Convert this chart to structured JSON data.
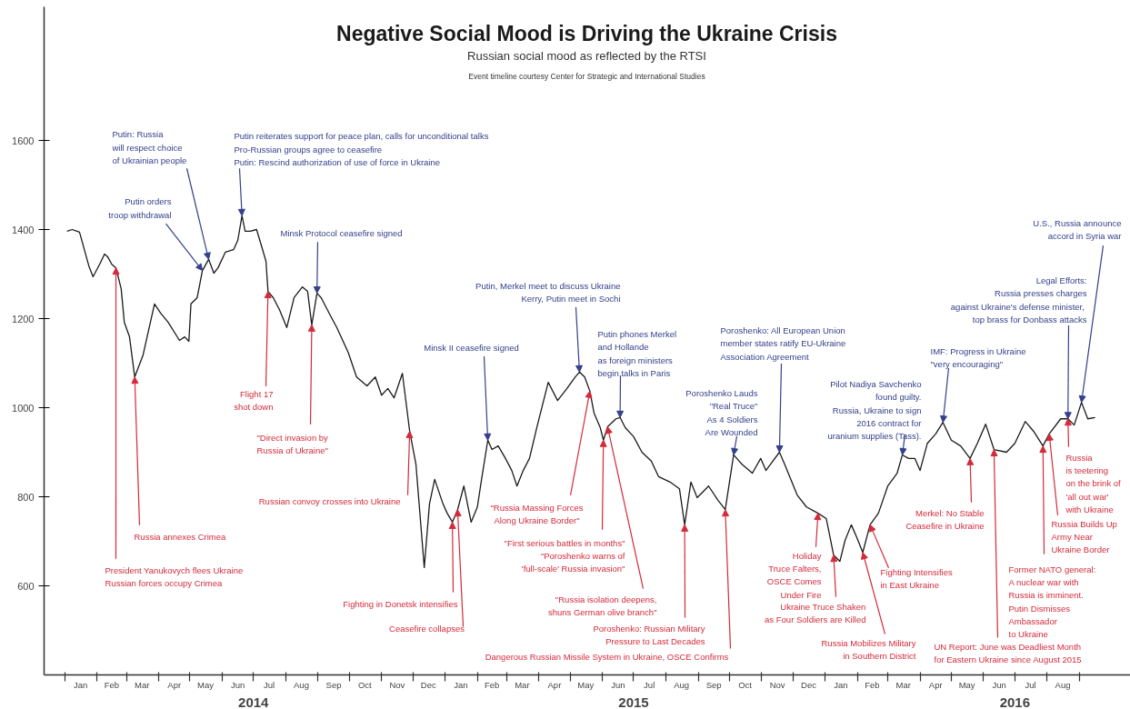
{
  "chart_data": {
    "type": "line",
    "title": "Negative Social Mood is Driving the Ukraine Crisis",
    "subtitle": "Russian social mood as reflected by the RTSI",
    "annotations": [
      "Event timeline courtesy Center for Strategic and International Studies",
      {
        "text": "Putin orders\ntroop withdrawal",
        "x": "2014-05-13",
        "y": 1308
      },
      {
        "text": "Putin: Russia\nwill respect choice\nof Ukrainian people",
        "x": "2014-05-19",
        "y": 1333
      },
      {
        "text": "Putin reiterates support for peace plan, calls for unconditional talks\nPro-Russian groups agree to ceasefire\nPutin: Rescind authorization of use of force in Ukraine",
        "x": "2014-06-20",
        "y": 1431
      },
      {
        "text": "Minsk Protocol ceasefire signed",
        "x": "2014-08-31",
        "y": 1257
      },
      {
        "text": "Putin, Merkel meet to discuss Ukraine\nKerry, Putin meet in Sochi",
        "x": "2015-05-10",
        "y": 1080
      },
      {
        "text": "Minsk II ceasefire signed",
        "x": "2015-02-11",
        "y": 927
      },
      {
        "text": "Putin phones Merkel\nand Hollande\nas foreign ministers\nbegin talks in Paris",
        "x": "2015-06-18",
        "y": 978
      },
      {
        "text": "Poroshenko Lauds\n\"Real Truce\"\nAs 4 Soldiers\nAre Wounded",
        "x": "2015-10-05",
        "y": 894
      },
      {
        "text": "Poroshenko: All European Union\nmember states ratify EU-Ukraine\nAssociation Agreement",
        "x": "2015-11-18",
        "y": 900
      },
      {
        "text": "Pilot Nadiya Savchenko\nfound guilty.\nRussia, Ukraine to sign\n2016 contract for\nuranium supplies (Tass).",
        "x": "2016-03-15",
        "y": 894
      },
      {
        "text": "IMF: Progress in Ukraine\n\"very encouraging\"",
        "x": "2016-04-23",
        "y": 967
      },
      {
        "text": "Legal Efforts:\nRussia presses charges\nagainst Ukraine's  defense minister,\ntop brass for Donbass attacks",
        "x": "2016-08-21",
        "y": 975
      },
      {
        "text": "U.S., Russia announce\naccord in Syria war",
        "x": "2016-09-03",
        "y": 1012
      },
      {
        "text": "President Yanukovych flees Ukraine\nRussian forces occupy Crimea",
        "x": "2014-02-19",
        "y": 1314
      },
      {
        "text": "Russia annexes Crimea",
        "x": "2014-03-09",
        "y": 1069
      },
      {
        "text": "Flight 17\nshot down",
        "x": "2014-07-15",
        "y": 1261
      },
      {
        "text": "\"Direct invasion by\nRussia of Ukraine\"",
        "x": "2014-08-26",
        "y": 1186
      },
      {
        "text": "Russian convoy crosses into Ukraine",
        "x": "2014-11-28",
        "y": 947
      },
      {
        "text": "Fighting in Donetsk intensifies",
        "x": "2015-01-08",
        "y": 743
      },
      {
        "text": "Ceasefire collapses",
        "x": "2015-01-13",
        "y": 771
      },
      {
        "text": "\"Russia Massing Forces\nAlong Ukraine Border\"",
        "x": "2015-05-20",
        "y": 1037
      },
      {
        "text": "\"First serious battles in months\"\n\"Poroshenko warns of\n'full-scale' Russia invasion\"",
        "x": "2015-06-02",
        "y": 927
      },
      {
        "text": "\"Russia isolation deepens,\nshuns German olive branch\"",
        "x": "2015-06-06",
        "y": 957
      },
      {
        "text": "Poroshenko: Russian Military\nPressure to Last Decades",
        "x": "2015-08-19",
        "y": 737
      },
      {
        "text": "Dangerous Russian Missile System in Ukraine, OSCE Confirms",
        "x": "2015-09-27",
        "y": 771
      },
      {
        "text": "Holiday\nTruce Falters,\nOSCE Comes\nUnder Fire",
        "x": "2015-12-25",
        "y": 763
      },
      {
        "text": "Ukraine Truce Shaken\nas Four Soldiers are Killed",
        "x": "2016-01-09",
        "y": 669
      },
      {
        "text": "Russia Mobilizes Military\nin Southern District",
        "x": "2016-02-06",
        "y": 675
      },
      {
        "text": "Fighting Intensifies\nin East Ukraine",
        "x": "2016-02-13",
        "y": 737
      },
      {
        "text": "Merkel: No Stable\nCeasefire in Ukraine",
        "x": "2016-05-19",
        "y": 886
      },
      {
        "text": "UN Report: June was Deadliest Month\nfor Eastern Ukraine since August 2015",
        "x": "2016-06-11",
        "y": 906
      },
      {
        "text": "Former NATO general:\nA nuclear war with\nRussia is imminent.\nPutin Dismisses\nAmbassador\nto Ukraine",
        "x": "2016-07-28",
        "y": 914
      },
      {
        "text": "Russia Builds Up\nArmy Near\nUkraine Border",
        "x": "2016-08-03",
        "y": 941
      },
      {
        "text": "Russia\nis teetering\non the brink of\n'all out war'\nwith Ukraine",
        "x": "2016-08-21",
        "y": 975
      }
    ],
    "x": [
      "2014-01-03",
      "2014-01-08",
      "2014-01-15",
      "2014-01-24",
      "2014-01-28",
      "2014-02-04",
      "2014-02-08",
      "2014-02-11",
      "2014-02-15",
      "2014-02-19",
      "2014-02-24",
      "2014-02-27",
      "2014-03-04",
      "2014-03-09",
      "2014-03-17",
      "2014-03-28",
      "2014-04-03",
      "2014-04-10",
      "2014-04-21",
      "2014-04-26",
      "2014-04-30",
      "2014-05-02",
      "2014-05-08",
      "2014-05-13",
      "2014-05-19",
      "2014-05-24",
      "2014-05-28",
      "2014-06-04",
      "2014-06-12",
      "2014-06-16",
      "2014-06-20",
      "2014-06-23",
      "2014-06-28",
      "2014-07-04",
      "2014-07-08",
      "2014-07-13",
      "2014-07-15",
      "2014-07-20",
      "2014-07-26",
      "2014-08-02",
      "2014-08-09",
      "2014-08-17",
      "2014-08-22",
      "2014-08-26",
      "2014-08-31",
      "2014-09-04",
      "2014-09-13",
      "2014-09-19",
      "2014-09-30",
      "2014-10-08",
      "2014-10-18",
      "2014-10-26",
      "2014-11-01",
      "2014-11-07",
      "2014-11-13",
      "2014-11-21",
      "2014-11-28",
      "2014-12-04",
      "2014-12-12",
      "2014-12-17",
      "2014-12-22",
      "2014-12-30",
      "2015-01-03",
      "2015-01-08",
      "2015-01-13",
      "2015-01-19",
      "2015-01-26",
      "2015-02-01",
      "2015-02-05",
      "2015-02-11",
      "2015-02-15",
      "2015-02-21",
      "2015-02-28",
      "2015-03-06",
      "2015-03-11",
      "2015-03-17",
      "2015-03-23",
      "2015-03-30",
      "2015-04-10",
      "2015-04-19",
      "2015-04-28",
      "2015-05-06",
      "2015-05-10",
      "2015-05-15",
      "2015-05-20",
      "2015-05-24",
      "2015-05-30",
      "2015-06-02",
      "2015-06-06",
      "2015-06-14",
      "2015-06-18",
      "2015-06-23",
      "2015-07-01",
      "2015-07-09",
      "2015-07-18",
      "2015-07-25",
      "2015-08-05",
      "2015-08-14",
      "2015-08-19",
      "2015-08-25",
      "2015-08-31",
      "2015-09-11",
      "2015-09-20",
      "2015-09-27",
      "2015-10-05",
      "2015-10-13",
      "2015-10-23",
      "2015-10-31",
      "2015-11-05",
      "2015-11-18",
      "2015-11-23",
      "2015-12-05",
      "2015-12-14",
      "2015-12-25",
      "2016-01-02",
      "2016-01-09",
      "2016-01-15",
      "2016-01-20",
      "2016-01-26",
      "2016-01-31",
      "2016-02-06",
      "2016-02-13",
      "2016-02-21",
      "2016-03-01",
      "2016-03-10",
      "2016-03-15",
      "2016-03-21",
      "2016-03-27",
      "2016-04-01",
      "2016-04-08",
      "2016-04-16",
      "2016-04-23",
      "2016-05-01",
      "2016-05-10",
      "2016-05-19",
      "2016-05-26",
      "2016-06-03",
      "2016-06-11",
      "2016-06-23",
      "2016-07-01",
      "2016-07-11",
      "2016-07-19",
      "2016-07-28",
      "2016-08-03",
      "2016-08-14",
      "2016-08-21",
      "2016-08-27",
      "2016-09-03",
      "2016-09-09",
      "2016-09-16"
    ],
    "series": [
      {
        "color": "#1a1a1a",
        "values": [
          1396,
          1400,
          1394,
          1318,
          1294,
          1325,
          1345,
          1339,
          1322,
          1314,
          1267,
          1192,
          1159,
          1069,
          1118,
          1233,
          1212,
          1192,
          1151,
          1159,
          1149,
          1233,
          1247,
          1308,
          1333,
          1302,
          1314,
          1349,
          1355,
          1376,
          1431,
          1396,
          1396,
          1400,
          1369,
          1329,
          1261,
          1247,
          1220,
          1180,
          1247,
          1271,
          1261,
          1186,
          1257,
          1247,
          1206,
          1180,
          1124,
          1069,
          1049,
          1069,
          1028,
          1043,
          1022,
          1077,
          947,
          873,
          641,
          784,
          839,
          784,
          763,
          743,
          771,
          824,
          743,
          777,
          839,
          927,
          906,
          914,
          886,
          859,
          824,
          859,
          886,
          955,
          1057,
          1016,
          1043,
          1069,
          1080,
          1069,
          1037,
          988,
          955,
          927,
          957,
          975,
          978,
          955,
          935,
          900,
          880,
          845,
          833,
          818,
          737,
          833,
          798,
          824,
          792,
          771,
          894,
          873,
          853,
          886,
          859,
          900,
          873,
          804,
          777,
          763,
          751,
          669,
          655,
          702,
          737,
          710,
          675,
          737,
          763,
          824,
          853,
          894,
          886,
          886,
          859,
          920,
          941,
          967,
          927,
          914,
          886,
          920,
          963,
          906,
          900,
          920,
          969,
          947,
          914,
          941,
          975,
          975,
          961,
          1012,
          975,
          978
        ]
      }
    ],
    "xlim": [
      "2013-12-12",
      "2016-10-20"
    ],
    "ylim": [
      400,
      1900
    ],
    "yticks": [
      600,
      800,
      1000,
      1200,
      1400,
      1600
    ],
    "xticks": [
      {
        "value": "2014-01-01",
        "label": null
      },
      {
        "value": "2014-02-01",
        "label": null
      },
      {
        "value": "2014-03-01",
        "label": null
      },
      {
        "value": "2014-04-01",
        "label": null
      },
      {
        "value": "2014-05-01",
        "label": null
      },
      {
        "value": "2014-06-01",
        "label": null
      },
      {
        "value": "2014-07-01",
        "label": null
      },
      {
        "value": "2014-08-01",
        "label": null
      },
      {
        "value": "2014-09-01",
        "label": null
      },
      {
        "value": "2014-10-01",
        "label": null
      },
      {
        "value": "2014-11-01",
        "label": null
      },
      {
        "value": "2014-12-01",
        "label": null
      },
      {
        "value": "2015-01-01",
        "label": null
      },
      {
        "value": "2015-02-01",
        "label": null
      },
      {
        "value": "2015-03-01",
        "label": null
      },
      {
        "value": "2015-04-01",
        "label": null
      },
      {
        "value": "2015-05-01",
        "label": null
      },
      {
        "value": "2015-06-01",
        "label": null
      },
      {
        "value": "2015-07-01",
        "label": null
      },
      {
        "value": "2015-08-01",
        "label": null
      },
      {
        "value": "2015-09-01",
        "label": null
      },
      {
        "value": "2015-10-01",
        "label": null
      },
      {
        "value": "2015-11-01",
        "label": null
      },
      {
        "value": "2015-12-01",
        "label": null
      },
      {
        "value": "2016-01-01",
        "label": null
      },
      {
        "value": "2016-02-01",
        "label": null
      },
      {
        "value": "2016-03-01",
        "label": null
      },
      {
        "value": "2016-04-01",
        "label": null
      },
      {
        "value": "2016-05-01",
        "label": null
      },
      {
        "value": "2016-06-01",
        "label": null
      },
      {
        "value": "2016-07-01",
        "label": null
      },
      {
        "value": "2016-08-01",
        "label": null
      },
      {
        "value": "2016-09-01",
        "label": null
      },
      {
        "value": "2014-01-16",
        "label": "Jan"
      },
      {
        "value": "2014-02-15",
        "label": "Feb"
      },
      {
        "value": "2014-03-16",
        "label": "Mar"
      },
      {
        "value": "2014-04-16",
        "label": "Apr"
      },
      {
        "value": "2014-05-16",
        "label": "May"
      },
      {
        "value": "2014-06-16",
        "label": "Jun"
      },
      {
        "value": "2014-07-16",
        "label": "Jul"
      },
      {
        "value": "2014-08-16",
        "label": "Aug"
      },
      {
        "value": "2014-09-16",
        "label": "Sep"
      },
      {
        "value": "2014-10-16",
        "label": "Oct"
      },
      {
        "value": "2014-11-16",
        "label": "Nov"
      },
      {
        "value": "2014-12-16",
        "label": "Dec"
      },
      {
        "value": "2015-01-16",
        "label": "Jan"
      },
      {
        "value": "2015-02-15",
        "label": "Feb"
      },
      {
        "value": "2015-03-16",
        "label": "Mar"
      },
      {
        "value": "2015-04-16",
        "label": "Apr"
      },
      {
        "value": "2015-05-16",
        "label": "May"
      },
      {
        "value": "2015-06-16",
        "label": "Jun"
      },
      {
        "value": "2015-07-16",
        "label": "Jul"
      },
      {
        "value": "2015-08-16",
        "label": "Aug"
      },
      {
        "value": "2015-09-16",
        "label": "Sep"
      },
      {
        "value": "2015-10-16",
        "label": "Oct"
      },
      {
        "value": "2015-11-16",
        "label": "Nov"
      },
      {
        "value": "2015-12-16",
        "label": "Dec"
      },
      {
        "value": "2016-01-16",
        "label": "Jan"
      },
      {
        "value": "2016-02-15",
        "label": "Feb"
      },
      {
        "value": "2016-03-16",
        "label": "Mar"
      },
      {
        "value": "2016-04-16",
        "label": "Apr"
      },
      {
        "value": "2016-05-16",
        "label": "May"
      },
      {
        "value": "2016-06-16",
        "label": "Jun"
      },
      {
        "value": "2016-07-16",
        "label": "Jul"
      },
      {
        "value": "2016-08-16",
        "label": "Aug"
      }
    ],
    "x2lim": [
      "2013-12-12",
      "2016-10-20"
    ],
    "x2ticks": [
      {
        "value": "2014-07-01",
        "label": "2014"
      },
      {
        "value": "2015-07-01",
        "label": "2015"
      },
      {
        "value": "2016-07-01",
        "label": "2016"
      }
    ]
  }
}
